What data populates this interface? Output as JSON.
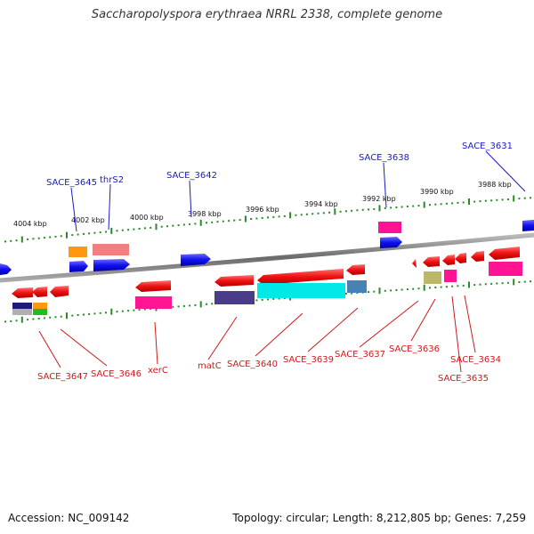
{
  "title": "Saccharopolyspora erythraea NRRL 2338, complete genome",
  "accession": "Accession: NC_009142",
  "topology": "Topology: circular; Length: 8,212,805 bp; Genes: 7,259",
  "colors": {
    "forward_gene": "#0a0aee",
    "reverse_gene": "#ee0a0a",
    "forward_label": "#1a1ac8",
    "reverse_label": "#cc1a1a",
    "backbone": "#888888",
    "ticks": "#2a8a2a"
  },
  "scale_labels": [
    {
      "label": "4004 kbp",
      "kbp": 4004
    },
    {
      "label": "4002 kbp",
      "kbp": 4002
    },
    {
      "label": "4000 kbp",
      "kbp": 4000
    },
    {
      "label": "3998 kbp",
      "kbp": 3998
    },
    {
      "label": "3996 kbp",
      "kbp": 3996
    },
    {
      "label": "3994 kbp",
      "kbp": 3994
    },
    {
      "label": "3992 kbp",
      "kbp": 3992
    },
    {
      "label": "3990 kbp",
      "kbp": 3990
    },
    {
      "label": "3988 kbp",
      "kbp": 3988
    }
  ],
  "forward_genes": [
    "SACE_3645",
    "thrS2",
    "SACE_3642",
    "SACE_3638",
    "SACE_3631"
  ],
  "reverse_genes": [
    "SACE_3647",
    "SACE_3646",
    "xerC",
    "matC",
    "SACE_3640",
    "SACE_3639",
    "SACE_3637",
    "SACE_3636",
    "SACE_3634",
    "SACE_3635"
  ]
}
